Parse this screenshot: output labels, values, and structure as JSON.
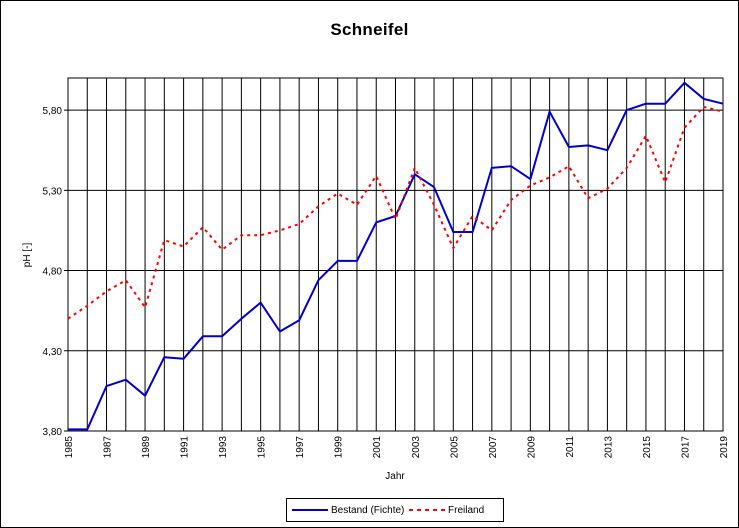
{
  "chart_data": {
    "type": "line",
    "title": "Schneifel",
    "xlabel": "Jahr",
    "ylabel": "pH [-]",
    "xlim": [
      1985,
      2019
    ],
    "ylim": [
      3.8,
      6.0
    ],
    "yticks": [
      "3,80",
      "4,30",
      "4,80",
      "5,30",
      "5,80"
    ],
    "ytick_values": [
      3.8,
      4.3,
      4.8,
      5.3,
      5.8
    ],
    "xticks": [
      "1985",
      "1987",
      "1989",
      "1991",
      "1993",
      "1995",
      "1997",
      "1999",
      "2001",
      "2003",
      "2005",
      "2007",
      "2009",
      "2011",
      "2013",
      "2015",
      "2017",
      "2019"
    ],
    "grid": true,
    "legend_position": "bottom",
    "x": [
      1985,
      1986,
      1987,
      1988,
      1989,
      1990,
      1991,
      1992,
      1993,
      1994,
      1995,
      1996,
      1997,
      1998,
      1999,
      2000,
      2001,
      2002,
      2003,
      2004,
      2005,
      2006,
      2007,
      2008,
      2009,
      2010,
      2011,
      2012,
      2013,
      2014,
      2015,
      2016,
      2017,
      2018,
      2019
    ],
    "series": [
      {
        "name": "Bestand (Fichte)",
        "color": "#0000CC",
        "style": "solid",
        "values": [
          3.81,
          3.81,
          4.08,
          4.12,
          4.02,
          4.26,
          4.25,
          4.39,
          4.39,
          4.5,
          4.6,
          4.42,
          4.49,
          4.74,
          4.86,
          4.86,
          5.1,
          5.14,
          5.4,
          5.32,
          5.04,
          5.04,
          5.44,
          5.45,
          5.37,
          5.79,
          5.57,
          5.58,
          5.55,
          5.8,
          5.84,
          5.84,
          5.97,
          5.87,
          5.84
        ]
      },
      {
        "name": "Freiland",
        "color": "#FF0000",
        "style": "dashed",
        "values": [
          4.5,
          4.58,
          4.67,
          4.74,
          4.57,
          4.99,
          4.95,
          5.07,
          4.93,
          5.02,
          5.02,
          5.05,
          5.09,
          5.2,
          5.28,
          5.21,
          5.39,
          5.12,
          5.44,
          5.21,
          4.94,
          5.14,
          5.05,
          5.24,
          5.33,
          5.38,
          5.45,
          5.25,
          5.31,
          5.44,
          5.64,
          5.35,
          5.69,
          5.82,
          5.79
        ]
      }
    ]
  }
}
